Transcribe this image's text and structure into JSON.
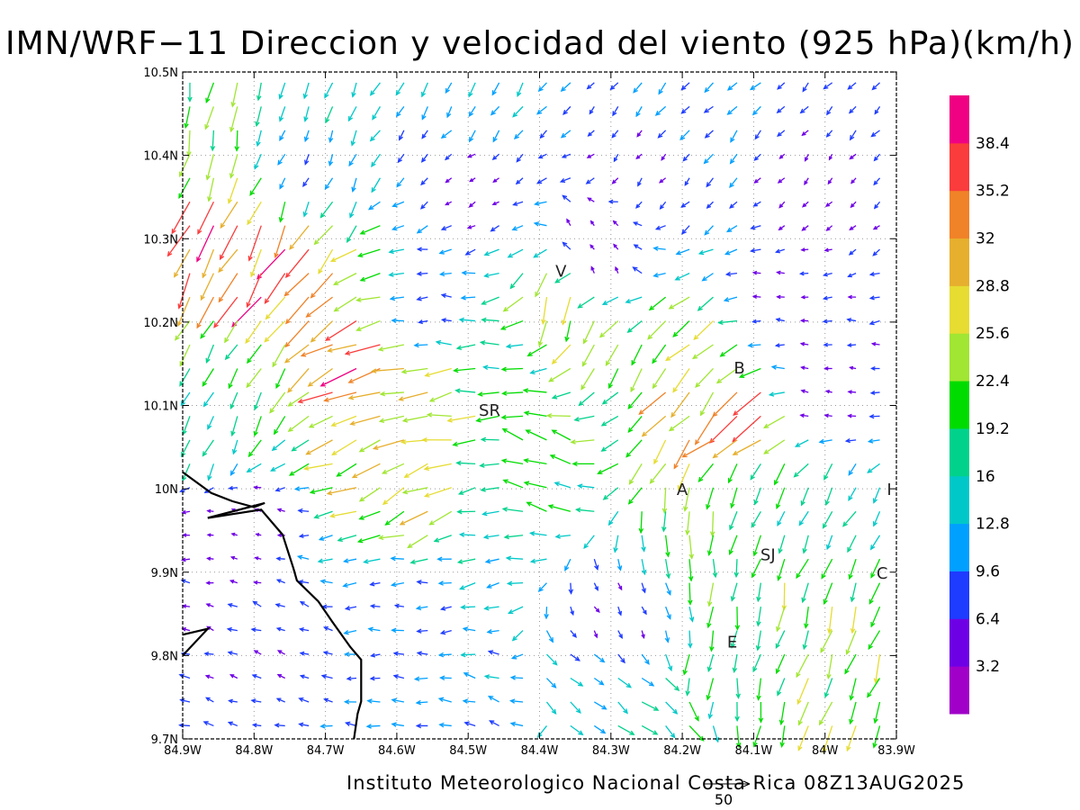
{
  "title": "IMN/WRF−11 Direccion y velocidad del viento (925 hPa)(km/h)",
  "footer": "Instituto Meteorologico Nacional Costa Rica 08Z13AUG2025",
  "reference_vector": {
    "label": "50",
    "value": 50
  },
  "map": {
    "lon_range": [
      -84.9,
      -83.9
    ],
    "lat_range": [
      9.7,
      10.5
    ],
    "x_ticks": [
      "84.9W",
      "84.8W",
      "84.7W",
      "84.6W",
      "84.5W",
      "84.4W",
      "84.3W",
      "84.2W",
      "84.1W",
      "84W",
      "83.9W"
    ],
    "y_ticks": [
      "9.7N",
      "9.8N",
      "9.9N",
      "10N",
      "10.1N",
      "10.2N",
      "10.3N",
      "10.4N",
      "10.5N"
    ],
    "grid": true,
    "cities": [
      {
        "label": "V",
        "lon": -84.37,
        "lat": 10.262
      },
      {
        "label": "SR",
        "lon": -84.47,
        "lat": 10.095
      },
      {
        "label": "B",
        "lon": -84.12,
        "lat": 10.146
      },
      {
        "label": "A",
        "lon": -84.2,
        "lat": 10.0
      },
      {
        "label": "SJ",
        "lon": -84.08,
        "lat": 9.922
      },
      {
        "label": "C",
        "lon": -83.92,
        "lat": 9.9
      },
      {
        "label": "E",
        "lon": -84.13,
        "lat": 9.817
      },
      {
        "label": "I",
        "lon": -83.91,
        "lat": 10.0
      }
    ],
    "coastline": [
      [
        -84.9,
        10.02
      ],
      [
        -84.86,
        9.995
      ],
      [
        -84.83,
        9.985
      ],
      [
        -84.8,
        9.978
      ],
      [
        -84.785,
        9.983
      ],
      [
        -84.865,
        9.965
      ],
      [
        -84.79,
        9.975
      ],
      [
        -84.76,
        9.945
      ],
      [
        -84.745,
        9.905
      ],
      [
        -84.74,
        9.89
      ],
      [
        -84.71,
        9.865
      ],
      [
        -84.69,
        9.84
      ],
      [
        -84.665,
        9.81
      ],
      [
        -84.65,
        9.795
      ],
      [
        -84.65,
        9.745
      ],
      [
        -84.655,
        9.73
      ],
      [
        -84.66,
        9.7
      ]
    ],
    "coastline2": [
      [
        -84.9,
        9.825
      ],
      [
        -84.865,
        9.832
      ],
      [
        -84.9,
        9.8
      ]
    ]
  },
  "colorbar": {
    "labels": [
      "3.2",
      "6.4",
      "9.6",
      "12.8",
      "16",
      "19.2",
      "22.4",
      "25.6",
      "28.8",
      "32",
      "35.2",
      "38.4"
    ],
    "colors": [
      "#a000c8",
      "#6e00e6",
      "#1e3cff",
      "#00a0ff",
      "#00c8c8",
      "#00d28c",
      "#00dc00",
      "#a0e632",
      "#e6dc32",
      "#e6af2d",
      "#f08228",
      "#fa3c3c",
      "#f00082"
    ]
  },
  "wind_regions": [
    {
      "lon": -84.87,
      "lat": 10.48,
      "dir": 258,
      "spd": 22
    },
    {
      "lon": -84.72,
      "lat": 10.48,
      "dir": 250,
      "spd": 14
    },
    {
      "lon": -84.5,
      "lat": 10.47,
      "dir": 240,
      "spd": 12
    },
    {
      "lon": -84.2,
      "lat": 10.46,
      "dir": 228,
      "spd": 11
    },
    {
      "lon": -83.95,
      "lat": 10.46,
      "dir": 225,
      "spd": 9
    },
    {
      "lon": -84.87,
      "lat": 10.4,
      "dir": 255,
      "spd": 24
    },
    {
      "lon": -84.75,
      "lat": 10.4,
      "dir": 250,
      "spd": 10
    },
    {
      "lon": -84.5,
      "lat": 10.38,
      "dir": 215,
      "spd": 5
    },
    {
      "lon": -84.25,
      "lat": 10.4,
      "dir": 230,
      "spd": 6
    },
    {
      "lon": -84.0,
      "lat": 10.38,
      "dir": 230,
      "spd": 5
    },
    {
      "lon": -84.86,
      "lat": 10.32,
      "dir": 245,
      "spd": 34
    },
    {
      "lon": -84.78,
      "lat": 10.26,
      "dir": 240,
      "spd": 36
    },
    {
      "lon": -84.72,
      "lat": 10.2,
      "dir": 215,
      "spd": 30
    },
    {
      "lon": -84.8,
      "lat": 10.15,
      "dir": 235,
      "spd": 20
    },
    {
      "lon": -84.66,
      "lat": 10.14,
      "dir": 200,
      "spd": 34
    },
    {
      "lon": -84.55,
      "lat": 10.1,
      "dir": 190,
      "spd": 28
    },
    {
      "lon": -84.58,
      "lat": 10.0,
      "dir": 205,
      "spd": 27
    },
    {
      "lon": -84.55,
      "lat": 10.22,
      "dir": 180,
      "spd": 9
    },
    {
      "lon": -84.45,
      "lat": 10.15,
      "dir": 180,
      "spd": 18
    },
    {
      "lon": -84.4,
      "lat": 10.02,
      "dir": 160,
      "spd": 19
    },
    {
      "lon": -84.47,
      "lat": 9.95,
      "dir": 190,
      "spd": 14
    },
    {
      "lon": -84.37,
      "lat": 10.22,
      "dir": 250,
      "spd": 25
    },
    {
      "lon": -84.3,
      "lat": 10.18,
      "dir": 235,
      "spd": 20
    },
    {
      "lon": -84.32,
      "lat": 10.28,
      "dir": 120,
      "spd": 4
    },
    {
      "lon": -84.18,
      "lat": 10.12,
      "dir": 230,
      "spd": 30
    },
    {
      "lon": -84.12,
      "lat": 10.08,
      "dir": 215,
      "spd": 33
    },
    {
      "lon": -84.05,
      "lat": 10.22,
      "dir": 180,
      "spd": 6
    },
    {
      "lon": -84.0,
      "lat": 10.12,
      "dir": 170,
      "spd": 5
    },
    {
      "lon": -84.1,
      "lat": 10.0,
      "dir": 245,
      "spd": 18
    },
    {
      "lon": -84.18,
      "lat": 9.95,
      "dir": 265,
      "spd": 20
    },
    {
      "lon": -84.0,
      "lat": 9.98,
      "dir": 240,
      "spd": 16
    },
    {
      "lon": -84.05,
      "lat": 9.86,
      "dir": 255,
      "spd": 22
    },
    {
      "lon": -83.97,
      "lat": 9.78,
      "dir": 250,
      "spd": 24
    },
    {
      "lon": -84.15,
      "lat": 9.78,
      "dir": 260,
      "spd": 18
    },
    {
      "lon": -84.3,
      "lat": 9.85,
      "dir": 300,
      "spd": 6
    },
    {
      "lon": -84.35,
      "lat": 9.75,
      "dir": 320,
      "spd": 12
    },
    {
      "lon": -84.25,
      "lat": 9.72,
      "dir": 320,
      "spd": 16
    },
    {
      "lon": -84.6,
      "lat": 9.85,
      "dir": 180,
      "spd": 9
    },
    {
      "lon": -84.78,
      "lat": 9.82,
      "dir": 160,
      "spd": 7
    },
    {
      "lon": -84.82,
      "lat": 9.95,
      "dir": 170,
      "spd": 4
    },
    {
      "lon": -84.45,
      "lat": 9.72,
      "dir": 160,
      "spd": 11
    },
    {
      "lon": -84.85,
      "lat": 10.08,
      "dir": 250,
      "spd": 16
    }
  ]
}
